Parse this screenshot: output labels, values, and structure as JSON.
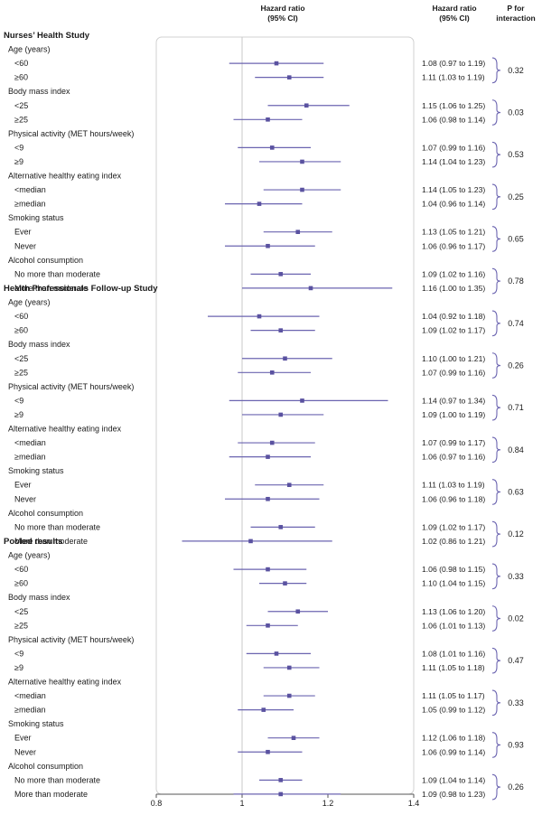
{
  "chart_data": {
    "type": "forest",
    "header": {
      "plot_title_line1": "Hazard ratio",
      "plot_title_line2": "(95% CI)",
      "hr_col_line1": "Hazard ratio",
      "hr_col_line2": "(95% CI)",
      "p_col_line1": "P for",
      "p_col_line2": "interaction"
    },
    "xlim": [
      0.8,
      1.4
    ],
    "xticks": [
      {
        "value": 0.8,
        "label": "0.8"
      },
      {
        "value": 1.0,
        "label": "1"
      },
      {
        "value": 1.2,
        "label": "1.2"
      },
      {
        "value": 1.4,
        "label": "1.4"
      }
    ],
    "reference_line": 1.0,
    "marker_color": "#5a52a0",
    "line_color": "#6b64b0",
    "studies": [
      {
        "name": "Nurses’ Health Study",
        "groups": [
          {
            "label": "Age (years)",
            "p": "0.32",
            "rows": [
              {
                "label": "<60",
                "hr": 1.08,
                "lo": 0.97,
                "hi": 1.19,
                "text": "1.08 (0.97 to 1.19)"
              },
              {
                "label": "≥60",
                "hr": 1.11,
                "lo": 1.03,
                "hi": 1.19,
                "text": "1.11 (1.03 to 1.19)"
              }
            ]
          },
          {
            "label": "Body mass index",
            "p": "0.03",
            "rows": [
              {
                "label": "<25",
                "hr": 1.15,
                "lo": 1.06,
                "hi": 1.25,
                "text": "1.15 (1.06 to 1.25)"
              },
              {
                "label": "≥25",
                "hr": 1.06,
                "lo": 0.98,
                "hi": 1.14,
                "text": "1.06 (0.98 to 1.14)"
              }
            ]
          },
          {
            "label": "Physical activity (MET hours/week)",
            "p": "0.53",
            "rows": [
              {
                "label": "<9",
                "hr": 1.07,
                "lo": 0.99,
                "hi": 1.16,
                "text": "1.07 (0.99 to 1.16)"
              },
              {
                "label": "≥9",
                "hr": 1.14,
                "lo": 1.04,
                "hi": 1.23,
                "text": "1.14 (1.04 to 1.23)"
              }
            ]
          },
          {
            "label": "Alternative healthy eating index",
            "p": "0.25",
            "rows": [
              {
                "label": "<median",
                "hr": 1.14,
                "lo": 1.05,
                "hi": 1.23,
                "text": "1.14 (1.05 to 1.23)"
              },
              {
                "label": "≥median",
                "hr": 1.04,
                "lo": 0.96,
                "hi": 1.14,
                "text": "1.04 (0.96 to 1.14)"
              }
            ]
          },
          {
            "label": "Smoking status",
            "p": "0.65",
            "rows": [
              {
                "label": "Ever",
                "hr": 1.13,
                "lo": 1.05,
                "hi": 1.21,
                "text": "1.13 (1.05 to 1.21)"
              },
              {
                "label": "Never",
                "hr": 1.06,
                "lo": 0.96,
                "hi": 1.17,
                "text": "1.06 (0.96 to 1.17)"
              }
            ]
          },
          {
            "label": "Alcohol consumption",
            "p": "0.78",
            "rows": [
              {
                "label": "No more than moderate",
                "hr": 1.09,
                "lo": 1.02,
                "hi": 1.16,
                "text": "1.09 (1.02 to 1.16)"
              },
              {
                "label": "More than moderate",
                "hr": 1.16,
                "lo": 1.0,
                "hi": 1.35,
                "text": "1.16 (1.00 to 1.35)"
              }
            ]
          }
        ]
      },
      {
        "name": "Health Professionals Follow-up Study",
        "groups": [
          {
            "label": "Age (years)",
            "p": "0.74",
            "rows": [
              {
                "label": "<60",
                "hr": 1.04,
                "lo": 0.92,
                "hi": 1.18,
                "text": "1.04 (0.92 to 1.18)"
              },
              {
                "label": "≥60",
                "hr": 1.09,
                "lo": 1.02,
                "hi": 1.17,
                "text": "1.09 (1.02 to 1.17)"
              }
            ]
          },
          {
            "label": "Body mass index",
            "p": "0.26",
            "rows": [
              {
                "label": "<25",
                "hr": 1.1,
                "lo": 1.0,
                "hi": 1.21,
                "text": "1.10 (1.00 to 1.21)"
              },
              {
                "label": "≥25",
                "hr": 1.07,
                "lo": 0.99,
                "hi": 1.16,
                "text": "1.07 (0.99 to 1.16)"
              }
            ]
          },
          {
            "label": "Physical activity (MET hours/week)",
            "p": "0.71",
            "rows": [
              {
                "label": "<9",
                "hr": 1.14,
                "lo": 0.97,
                "hi": 1.34,
                "text": "1.14 (0.97 to 1.34)"
              },
              {
                "label": "≥9",
                "hr": 1.09,
                "lo": 1.0,
                "hi": 1.19,
                "text": "1.09 (1.00 to 1.19)"
              }
            ]
          },
          {
            "label": "Alternative healthy eating index",
            "p": "0.84",
            "rows": [
              {
                "label": "<median",
                "hr": 1.07,
                "lo": 0.99,
                "hi": 1.17,
                "text": "1.07 (0.99 to 1.17)"
              },
              {
                "label": "≥median",
                "hr": 1.06,
                "lo": 0.97,
                "hi": 1.16,
                "text": "1.06 (0.97 to 1.16)"
              }
            ]
          },
          {
            "label": "Smoking status",
            "p": "0.63",
            "rows": [
              {
                "label": "Ever",
                "hr": 1.11,
                "lo": 1.03,
                "hi": 1.19,
                "text": "1.11 (1.03 to 1.19)"
              },
              {
                "label": "Never",
                "hr": 1.06,
                "lo": 0.96,
                "hi": 1.18,
                "text": "1.06 (0.96 to 1.18)"
              }
            ]
          },
          {
            "label": "Alcohol consumption",
            "p": "0.12",
            "rows": [
              {
                "label": "No more than moderate",
                "hr": 1.09,
                "lo": 1.02,
                "hi": 1.17,
                "text": "1.09 (1.02 to 1.17)"
              },
              {
                "label": "More than moderate",
                "hr": 1.02,
                "lo": 0.86,
                "hi": 1.21,
                "text": "1.02 (0.86 to 1.21)"
              }
            ]
          }
        ]
      },
      {
        "name": "Pooled results",
        "groups": [
          {
            "label": "Age (years)",
            "p": "0.33",
            "rows": [
              {
                "label": "<60",
                "hr": 1.06,
                "lo": 0.98,
                "hi": 1.15,
                "text": "1.06 (0.98 to 1.15)"
              },
              {
                "label": "≥60",
                "hr": 1.1,
                "lo": 1.04,
                "hi": 1.15,
                "text": "1.10 (1.04 to 1.15)"
              }
            ]
          },
          {
            "label": "Body mass index",
            "p": "0.02",
            "rows": [
              {
                "label": "<25",
                "hr": 1.13,
                "lo": 1.06,
                "hi": 1.2,
                "text": "1.13 (1.06 to 1.20)"
              },
              {
                "label": "≥25",
                "hr": 1.06,
                "lo": 1.01,
                "hi": 1.13,
                "text": "1.06 (1.01 to 1.13)"
              }
            ]
          },
          {
            "label": "Physical activity (MET hours/week)",
            "p": "0.47",
            "rows": [
              {
                "label": "<9",
                "hr": 1.08,
                "lo": 1.01,
                "hi": 1.16,
                "text": "1.08 (1.01 to 1.16)"
              },
              {
                "label": "≥9",
                "hr": 1.11,
                "lo": 1.05,
                "hi": 1.18,
                "text": "1.11 (1.05 to 1.18)"
              }
            ]
          },
          {
            "label": "Alternative healthy eating index",
            "p": "0.33",
            "rows": [
              {
                "label": "<median",
                "hr": 1.11,
                "lo": 1.05,
                "hi": 1.17,
                "text": "1.11 (1.05 to 1.17)"
              },
              {
                "label": "≥median",
                "hr": 1.05,
                "lo": 0.99,
                "hi": 1.12,
                "text": "1.05 (0.99 to 1.12)"
              }
            ]
          },
          {
            "label": "Smoking status",
            "p": "0.93",
            "rows": [
              {
                "label": "Ever",
                "hr": 1.12,
                "lo": 1.06,
                "hi": 1.18,
                "text": "1.12 (1.06 to 1.18)"
              },
              {
                "label": "Never",
                "hr": 1.06,
                "lo": 0.99,
                "hi": 1.14,
                "text": "1.06 (0.99 to 1.14)"
              }
            ]
          },
          {
            "label": "Alcohol consumption",
            "p": "0.26",
            "rows": [
              {
                "label": "No more than moderate",
                "hr": 1.09,
                "lo": 1.04,
                "hi": 1.14,
                "text": "1.09 (1.04 to 1.14)"
              },
              {
                "label": "More than moderate",
                "hr": 1.09,
                "lo": 0.98,
                "hi": 1.23,
                "text": "1.09 (0.98 to 1.23)"
              }
            ]
          }
        ]
      }
    ]
  }
}
